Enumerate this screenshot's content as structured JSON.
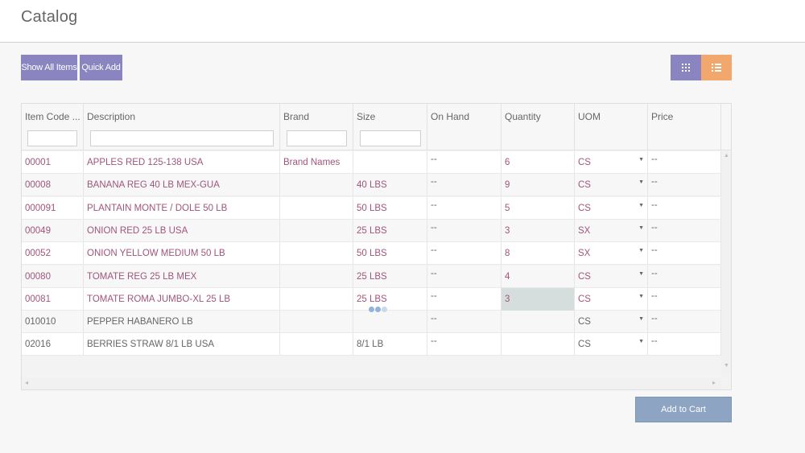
{
  "page": {
    "title": "Catalog"
  },
  "toolbar": {
    "show_all_label": "Show All Items",
    "quick_add_label": "Quick Add"
  },
  "view_toggle": {
    "grid_icon": "grid-icon",
    "list_icon": "list-icon",
    "grid_color": "#8a84c1",
    "list_color": "#f2a86c"
  },
  "columns": [
    {
      "key": "code",
      "label": "Item Code  ...",
      "filter": true
    },
    {
      "key": "desc",
      "label": "Description",
      "filter": true
    },
    {
      "key": "brand",
      "label": "Brand",
      "filter": true
    },
    {
      "key": "size",
      "label": "Size",
      "filter": true
    },
    {
      "key": "onhand",
      "label": "On Hand",
      "filter": false
    },
    {
      "key": "qty",
      "label": "Quantity",
      "filter": false
    },
    {
      "key": "uom",
      "label": "UOM",
      "filter": false
    },
    {
      "key": "price",
      "label": "Price",
      "filter": false
    }
  ],
  "rows": [
    {
      "code": "00001",
      "desc": "APPLES RED 125-138 USA",
      "brand": "Brand Names",
      "size": "",
      "onhand": "--",
      "qty": "6",
      "uom": "CS",
      "price": "--",
      "link": true
    },
    {
      "code": "00008",
      "desc": "BANANA REG 40 LB MEX-GUA",
      "brand": "",
      "size": "40 LBS",
      "onhand": "--",
      "qty": "9",
      "uom": "CS",
      "price": "--",
      "link": true
    },
    {
      "code": "000091",
      "desc": "PLANTAIN MONTE / DOLE 50 LB",
      "brand": "",
      "size": "50 LBS",
      "onhand": "--",
      "qty": "5",
      "uom": "CS",
      "price": "--",
      "link": true
    },
    {
      "code": "00049",
      "desc": "ONION RED 25 LB USA",
      "brand": "",
      "size": "25 LBS",
      "onhand": "--",
      "qty": "3",
      "uom": "SX",
      "price": "--",
      "link": true
    },
    {
      "code": "00052",
      "desc": "ONION YELLOW MEDIUM 50 LB",
      "brand": "",
      "size": "50 LBS",
      "onhand": "--",
      "qty": "8",
      "uom": "SX",
      "price": "--",
      "link": true
    },
    {
      "code": "00080",
      "desc": "TOMATE REG 25 LB MEX",
      "brand": "",
      "size": "25 LBS",
      "onhand": "--",
      "qty": "4",
      "uom": "CS",
      "price": "--",
      "link": true
    },
    {
      "code": "00081",
      "desc": "TOMATE ROMA JUMBO-XL 25 LB",
      "brand": "",
      "size": "25 LBS",
      "onhand": "--",
      "qty": "3",
      "uom": "CS",
      "price": "--",
      "link": true,
      "active": true
    },
    {
      "code": "010010",
      "desc": "PEPPER HABANERO LB",
      "brand": "",
      "size": "",
      "onhand": "--",
      "qty": "",
      "uom": "CS",
      "price": "--",
      "link": false
    },
    {
      "code": "02016",
      "desc": "BERRIES STRAW 8/1 LB USA",
      "brand": "",
      "size": "8/1 LB",
      "onhand": "--",
      "qty": "",
      "uom": "CS",
      "price": "--",
      "link": false
    }
  ],
  "footer": {
    "add_to_cart_label": "Add to Cart"
  },
  "colors": {
    "link": "#a0557b",
    "accent_purple": "#8a84c1",
    "accent_orange": "#f2a86c",
    "cart_button": "#8da4c2"
  }
}
